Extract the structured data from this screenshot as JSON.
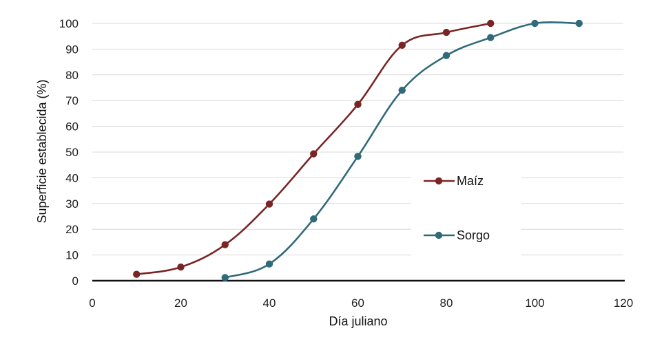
{
  "chart_data": {
    "type": "line",
    "title": "",
    "xlabel": "Día juliano",
    "ylabel": "Superficie establecida (%)",
    "xlim": [
      0,
      120
    ],
    "ylim": [
      0,
      100
    ],
    "x_ticks": [
      0,
      20,
      40,
      60,
      80,
      100,
      120
    ],
    "y_ticks": [
      0,
      10,
      20,
      30,
      40,
      50,
      60,
      70,
      80,
      90,
      100
    ],
    "grid": "horizontal",
    "legend_position": "right",
    "series": [
      {
        "name": "Maíz",
        "color": "#7a2424",
        "x": [
          10,
          20,
          30,
          40,
          50,
          60,
          70,
          80,
          90
        ],
        "y": [
          2.5,
          5.3,
          14,
          29.8,
          49.3,
          68.5,
          91.5,
          96.5,
          100
        ]
      },
      {
        "name": "Sorgo",
        "color": "#2f6b79",
        "x": [
          30,
          40,
          50,
          60,
          70,
          80,
          90,
          100,
          110
        ],
        "y": [
          1.2,
          6.5,
          24,
          48.3,
          74,
          87.5,
          94.5,
          100,
          100
        ]
      }
    ]
  }
}
